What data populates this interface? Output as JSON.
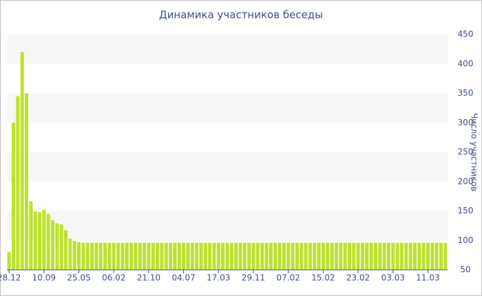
{
  "chart_data": {
    "type": "bar",
    "title": "Динамика участников беседы",
    "y_label": "Число участников",
    "categories": [
      "28.12",
      null,
      null,
      null,
      null,
      null,
      null,
      null,
      "10.09",
      null,
      null,
      null,
      null,
      null,
      null,
      null,
      "25.05",
      null,
      null,
      null,
      null,
      null,
      null,
      null,
      "06.02",
      null,
      null,
      null,
      null,
      null,
      null,
      null,
      "21.10",
      null,
      null,
      null,
      null,
      null,
      null,
      null,
      "04.07",
      null,
      null,
      null,
      null,
      null,
      null,
      null,
      "17.03",
      null,
      null,
      null,
      null,
      null,
      null,
      null,
      "29.11",
      null,
      null,
      null,
      null,
      null,
      null,
      null,
      "07.02",
      null,
      null,
      null,
      null,
      null,
      null,
      null,
      "15.02",
      null,
      null,
      null,
      null,
      null,
      null,
      null,
      "23.02",
      null,
      null,
      null,
      null,
      null,
      null,
      null,
      "03.03",
      null,
      null,
      null,
      null,
      null,
      null,
      null,
      "11.03",
      null,
      null,
      null,
      null
    ],
    "values": [
      80,
      300,
      345,
      420,
      350,
      166,
      149,
      148,
      152,
      145,
      134,
      129,
      127,
      117,
      103,
      99,
      97,
      96,
      96,
      96,
      96,
      96,
      96,
      96,
      96,
      96,
      96,
      96,
      96,
      96,
      96,
      96,
      96,
      96,
      96,
      96,
      96,
      96,
      96,
      96,
      96,
      96,
      96,
      96,
      96,
      96,
      96,
      96,
      96,
      96,
      96,
      96,
      96,
      96,
      96,
      96,
      96,
      96,
      96,
      96,
      96,
      96,
      96,
      96,
      96,
      96,
      96,
      96,
      96,
      96,
      96,
      96,
      96,
      96,
      96,
      96,
      96,
      96,
      96,
      96,
      96,
      96,
      96,
      96,
      96,
      96,
      96,
      96,
      96,
      96,
      96,
      96,
      96,
      96,
      96,
      96,
      96,
      96,
      96,
      96,
      96
    ],
    "color": "#bde22f",
    "ylim": [
      50,
      450
    ],
    "yticks": [
      50,
      100,
      150,
      200,
      250,
      300,
      350,
      400,
      450
    ],
    "grid": "bands",
    "y_axis_side": "right"
  }
}
